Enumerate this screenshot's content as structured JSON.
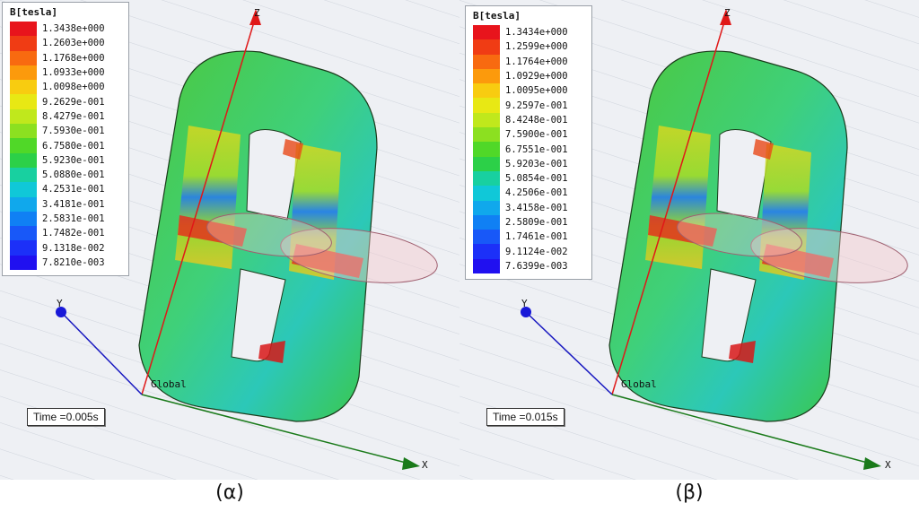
{
  "panels": [
    {
      "legend_title": "B[tesla]",
      "legend_values": [
        "1.3438e+000",
        "1.2603e+000",
        "1.1768e+000",
        "1.0933e+000",
        "1.0098e+000",
        "9.2629e-001",
        "8.4279e-001",
        "7.5930e-001",
        "6.7580e-001",
        "5.9230e-001",
        "5.0880e-001",
        "4.2531e-001",
        "3.4181e-001",
        "2.5831e-001",
        "1.7482e-001",
        "9.1318e-002",
        "7.8210e-003"
      ],
      "time_label": "Time   =0.005s",
      "caption": "(α)"
    },
    {
      "legend_title": "B[tesla]",
      "legend_values": [
        "1.3434e+000",
        "1.2599e+000",
        "1.1764e+000",
        "1.0929e+000",
        "1.0095e+000",
        "9.2597e-001",
        "8.4248e-001",
        "7.5900e-001",
        "6.7551e-001",
        "5.9203e-001",
        "5.0854e-001",
        "4.2506e-001",
        "3.4158e-001",
        "2.5809e-001",
        "1.7461e-001",
        "9.1124e-002",
        "7.6399e-003"
      ],
      "time_label": "Time   =0.015s",
      "caption": "(β)"
    }
  ],
  "legend_colors": [
    "#e8141c",
    "#f03c14",
    "#f86a10",
    "#fc9a0c",
    "#f8cc10",
    "#e8e814",
    "#c0e81c",
    "#8ce020",
    "#50d828",
    "#2cd048",
    "#18d0a0",
    "#10c8d8",
    "#10a8ec",
    "#1080f4",
    "#1858f8",
    "#1c30f8",
    "#2010f0"
  ],
  "axes": {
    "z": "Z",
    "x": "X",
    "y": "Y",
    "origin": "Global"
  }
}
